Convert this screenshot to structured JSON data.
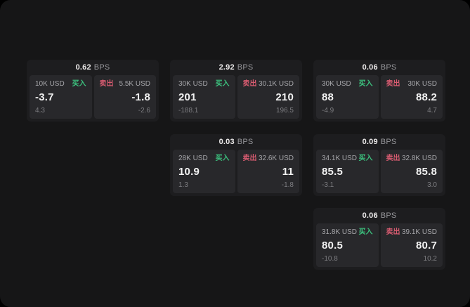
{
  "labels": {
    "bps_unit": "BPS",
    "buy": "买入",
    "sell": "卖出"
  },
  "colors": {
    "page_bg": "#161617",
    "card_bg": "#1d1d1f",
    "panel_bg": "#28282b",
    "buy_green": "#3cc17e",
    "sell_red": "#d75b70",
    "primary_text": "#f2f2f2",
    "muted_text": "#a6a6aa",
    "dim_text": "#7d7d81"
  },
  "cards": [
    {
      "bps": "0.62",
      "buy": {
        "size": "10K USD",
        "price": "-3.7",
        "delta": "4.3"
      },
      "sell": {
        "size": "5.5K USD",
        "price": "-1.8",
        "delta": "-2.6"
      }
    },
    {
      "bps": "2.92",
      "buy": {
        "size": "30K USD",
        "price": "201",
        "delta": "-188.1"
      },
      "sell": {
        "size": "30.1K USD",
        "price": "210",
        "delta": "196.5"
      }
    },
    {
      "bps": "0.06",
      "buy": {
        "size": "30K USD",
        "price": "88",
        "delta": "-4.9"
      },
      "sell": {
        "size": "30K USD",
        "price": "88.2",
        "delta": "4.7"
      }
    },
    {
      "bps": "0.03",
      "buy": {
        "size": "28K USD",
        "price": "10.9",
        "delta": "1.3"
      },
      "sell": {
        "size": "32.6K USD",
        "price": "11",
        "delta": "-1.8"
      }
    },
    {
      "bps": "0.09",
      "buy": {
        "size": "34.1K USD",
        "price": "85.5",
        "delta": "-3.1"
      },
      "sell": {
        "size": "32.8K USD",
        "price": "85.8",
        "delta": "3.0"
      }
    },
    {
      "bps": "0.06",
      "buy": {
        "size": "31.8K USD",
        "price": "80.5",
        "delta": "-10.8"
      },
      "sell": {
        "size": "39.1K USD",
        "price": "80.7",
        "delta": "10.2"
      }
    }
  ]
}
